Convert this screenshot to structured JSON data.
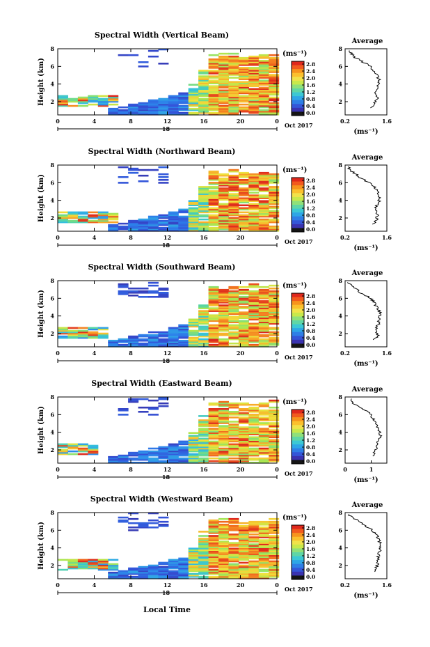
{
  "figure": {
    "xlabel": "Local Time",
    "date_label": "Oct 2017",
    "day_label": "18",
    "colorbar_unit": "(ms⁻¹)",
    "colorbar_ticks": [
      "2.8",
      "2.4",
      "2.0",
      "1.6",
      "1.2",
      "0.8",
      "0.4",
      "0.0"
    ],
    "colorbar_colors": [
      "#e0281c",
      "#f25a1e",
      "#f7941d",
      "#fbc02d",
      "#f1e24a",
      "#c8e84b",
      "#8fe07a",
      "#5fd6a6",
      "#3cc8d4",
      "#2ea6e6",
      "#2f7fe6",
      "#3456d8",
      "#3a33b0",
      "#151515"
    ],
    "avg_title": "Average",
    "avg_xlabel": "(ms⁻¹)"
  },
  "chart_data": [
    {
      "type": "heatmap",
      "title": "Spectral Width (Vertical Beam)",
      "ylabel": "Height (km)",
      "x_ticks": [
        "0",
        "4",
        "8",
        "12",
        "16",
        "20",
        "0"
      ],
      "y_ticks": [
        "8",
        "6",
        "4",
        "2"
      ],
      "xlim": [
        0,
        24
      ],
      "ylim": [
        0.5,
        8
      ],
      "colorbar_range": [
        0.0,
        3.0
      ],
      "noise_layer_end_hour": 5.8,
      "average_profile": {
        "title": "Average",
        "x_ticks": [
          "0.2",
          "1.6"
        ],
        "y_ticks": [
          "8",
          "6",
          "4",
          "2"
        ],
        "xlim": [
          0.2,
          1.6
        ],
        "height": [
          7.8,
          7.2,
          6.6,
          6.0,
          5.4,
          4.8,
          4.2,
          3.6,
          3.0,
          2.4,
          1.8,
          1.2
        ],
        "width": [
          0.35,
          0.45,
          0.75,
          1.05,
          1.2,
          1.3,
          1.35,
          1.25,
          1.2,
          1.3,
          1.15,
          1.1
        ]
      }
    },
    {
      "type": "heatmap",
      "title": "Spectral Width (Northward Beam)",
      "ylabel": "Height (km)",
      "x_ticks": [
        "0",
        "4",
        "8",
        "12",
        "16",
        "20",
        "0"
      ],
      "y_ticks": [
        "8",
        "6",
        "4",
        "2"
      ],
      "xlim": [
        0,
        24
      ],
      "ylim": [
        0.5,
        8
      ],
      "colorbar_range": [
        0.0,
        3.0
      ],
      "noise_layer_end_hour": 6.0,
      "average_profile": {
        "title": "Average",
        "x_ticks": [
          "0.2",
          "1.6"
        ],
        "y_ticks": [
          "8",
          "6",
          "4",
          "2"
        ],
        "xlim": [
          0.2,
          1.6
        ],
        "height": [
          7.8,
          7.2,
          6.6,
          6.0,
          5.4,
          4.8,
          4.2,
          3.6,
          3.0,
          2.4,
          1.8,
          1.2
        ],
        "width": [
          0.3,
          0.45,
          0.7,
          1.0,
          1.2,
          1.3,
          1.35,
          1.3,
          1.2,
          1.3,
          1.25,
          1.15
        ]
      }
    },
    {
      "type": "heatmap",
      "title": "Spectral Width (Southward Beam)",
      "ylabel": "Height (km)",
      "x_ticks": [
        "0",
        "4",
        "8",
        "12",
        "16",
        "20",
        "0"
      ],
      "y_ticks": [
        "8",
        "6",
        "4",
        "2"
      ],
      "xlim": [
        0,
        24
      ],
      "ylim": [
        0.5,
        8
      ],
      "colorbar_range": [
        0.0,
        3.0
      ],
      "noise_layer_end_hour": 5.5,
      "average_profile": {
        "title": "Average",
        "x_ticks": [
          "0.2",
          "1.6"
        ],
        "y_ticks": [
          "8",
          "6",
          "4",
          "2"
        ],
        "xlim": [
          0.2,
          1.6
        ],
        "height": [
          7.8,
          7.2,
          6.6,
          6.0,
          5.4,
          4.8,
          4.2,
          3.6,
          3.0,
          2.4,
          1.8,
          1.2
        ],
        "width": [
          0.3,
          0.5,
          0.75,
          1.05,
          1.2,
          1.3,
          1.4,
          1.35,
          1.3,
          1.25,
          1.3,
          1.15
        ]
      }
    },
    {
      "type": "heatmap",
      "title": "Spectral Width (Eastward Beam)",
      "ylabel": "Height (km)",
      "x_ticks": [
        "0",
        "4",
        "8",
        "12",
        "16",
        "20",
        "0"
      ],
      "y_ticks": [
        "8",
        "6",
        "4",
        "2"
      ],
      "xlim": [
        0,
        24
      ],
      "ylim": [
        0.5,
        8
      ],
      "colorbar_range": [
        0.0,
        3.0
      ],
      "noise_layer_end_hour": 4.2,
      "average_profile": {
        "title": "Average",
        "x_ticks": [
          "0",
          "1"
        ],
        "y_ticks": [
          "8",
          "6",
          "4",
          "2"
        ],
        "xlim": [
          0,
          1.6
        ],
        "height": [
          7.8,
          7.2,
          6.6,
          6.0,
          5.4,
          4.8,
          4.2,
          3.6,
          3.0,
          2.4,
          1.8,
          1.2
        ],
        "width": [
          0.2,
          0.35,
          0.7,
          1.0,
          1.1,
          1.2,
          1.3,
          1.35,
          1.25,
          1.2,
          1.15,
          1.05
        ]
      }
    },
    {
      "type": "heatmap",
      "title": "Spectral Width (Westward Beam)",
      "ylabel": "Height (km)",
      "x_ticks": [
        "0",
        "4",
        "8",
        "12",
        "16",
        "20",
        "0"
      ],
      "y_ticks": [
        "8",
        "6",
        "4",
        "2"
      ],
      "xlim": [
        0,
        24
      ],
      "ylim": [
        0.5,
        8
      ],
      "colorbar_range": [
        0.0,
        3.0
      ],
      "noise_layer_end_hour": 6.0,
      "average_profile": {
        "title": "Average",
        "x_ticks": [
          "0.2",
          "1.6"
        ],
        "y_ticks": [
          "8",
          "6",
          "4",
          "2"
        ],
        "xlim": [
          0.2,
          1.6
        ],
        "height": [
          7.8,
          7.2,
          6.6,
          6.0,
          5.4,
          4.8,
          4.2,
          3.6,
          3.0,
          2.4,
          1.8,
          1.2
        ],
        "width": [
          0.3,
          0.55,
          0.85,
          1.1,
          1.25,
          1.35,
          1.4,
          1.35,
          1.3,
          1.3,
          1.25,
          1.15
        ]
      }
    }
  ]
}
